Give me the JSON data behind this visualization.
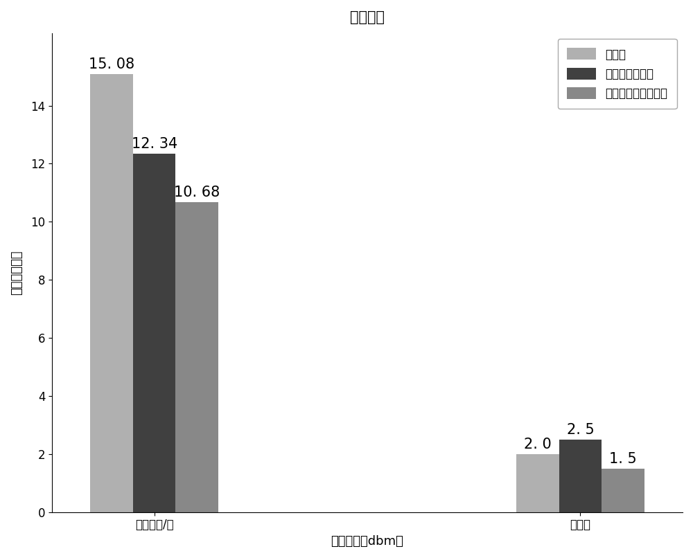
{
  "title": "用电调度",
  "xlabel": "传输功率（dbm）",
  "ylabel": "平均用户效值",
  "categories": [
    "日总电费/元",
    "峰谷差"
  ],
  "series": [
    {
      "label": "原电量",
      "values": [
        15.08,
        2.0
      ],
      "color": "#b0b0b0"
    },
    {
      "label": "粒子群优化算法",
      "values": [
        12.34,
        2.5
      ],
      "color": "#404040"
    },
    {
      "label": "改进粒子群优化算法",
      "values": [
        10.68,
        1.5
      ],
      "color": "#888888"
    }
  ],
  "ylim": [
    0,
    16.5
  ],
  "yticks": [
    0,
    2,
    4,
    6,
    8,
    10,
    12,
    14
  ],
  "bar_width": 0.25,
  "group_positions": [
    1.0,
    3.5
  ],
  "label_fontsize": 13,
  "title_fontsize": 15,
  "tick_fontsize": 12,
  "legend_fontsize": 12,
  "annot_fontsize": 15,
  "background_color": "#ffffff",
  "annot_labels": [
    [
      "15. 08",
      "2. 0"
    ],
    [
      "12. 34",
      "2. 5"
    ],
    [
      "10. 68",
      "1. 5"
    ]
  ]
}
